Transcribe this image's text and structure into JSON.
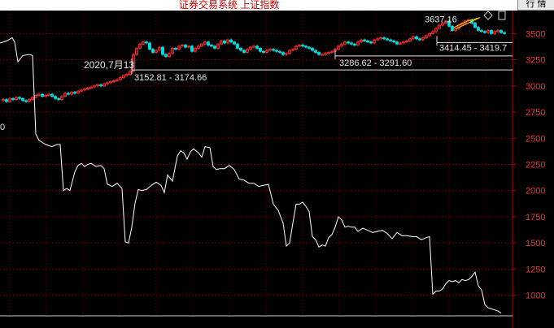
{
  "window": {
    "title": "证券交易系统 上证指数",
    "corner_button": "行 情"
  },
  "colors": {
    "background": "#000000",
    "grid": "#7a0000",
    "axis": "#c00000",
    "tick_text": "#ff3030",
    "price_line": "#ffffff",
    "candle_up": "#ff3030",
    "candle_down": "#00e0e0",
    "annotation": "#e6e6e6",
    "highlight": "#ffd700"
  },
  "chart_data": {
    "type": "line",
    "title": "",
    "xlabel": "",
    "ylabel": "",
    "ylim": [
      780,
      3720
    ],
    "yticks": [
      1000,
      1250,
      1500,
      1750,
      2000,
      2250,
      2500,
      2750,
      3000,
      3250,
      3500
    ],
    "grid": true,
    "series": [
      {
        "x": [
          0,
          8,
          15,
          18,
          22,
          28,
          36,
          40,
          44,
          48,
          56,
          64,
          70,
          74,
          78,
          82,
          86,
          92,
          96,
          100,
          104,
          108,
          112,
          118,
          124,
          128,
          132,
          138,
          144,
          150,
          154,
          158,
          162,
          166,
          170,
          174,
          180,
          186,
          192,
          198,
          202,
          206,
          212,
          218,
          222,
          226,
          230,
          234,
          238,
          244,
          248,
          252,
          258,
          262,
          266,
          270,
          276,
          282,
          288,
          294,
          300,
          306,
          312,
          318,
          324,
          330,
          336,
          342,
          348,
          352,
          356,
          360,
          364,
          368,
          372,
          376,
          380,
          384,
          388,
          392,
          396,
          400,
          404,
          408,
          412,
          416,
          420,
          424,
          428,
          432,
          436,
          440,
          446,
          452,
          458,
          464,
          470,
          476,
          482,
          488,
          494,
          500,
          506,
          512,
          518,
          524,
          528,
          532,
          536,
          540,
          544,
          548,
          552,
          556,
          560,
          564,
          568,
          572,
          576,
          580,
          584,
          588,
          592,
          596,
          600,
          604,
          608,
          612,
          616
        ],
        "values": [
          3410,
          3430,
          3460,
          3420,
          3230,
          3290,
          3300,
          3290,
          2540,
          2480,
          2440,
          2420,
          2440,
          2440,
          2000,
          2020,
          2000,
          2180,
          2240,
          2260,
          2230,
          2250,
          2260,
          2230,
          2240,
          2210,
          2060,
          2040,
          2070,
          2020,
          1510,
          1500,
          1650,
          1880,
          2010,
          2000,
          2010,
          2050,
          2080,
          2050,
          1980,
          2150,
          2090,
          2330,
          2380,
          2360,
          2300,
          2370,
          2400,
          2360,
          2320,
          2420,
          2410,
          2230,
          2200,
          2210,
          2210,
          2240,
          2200,
          2110,
          2100,
          2070,
          2070,
          2040,
          2050,
          2060,
          1870,
          1810,
          1690,
          1470,
          1500,
          1690,
          1870,
          1870,
          1890,
          1850,
          1800,
          1560,
          1530,
          1460,
          1480,
          1470,
          1550,
          1580,
          1650,
          1750,
          1720,
          1650,
          1660,
          1650,
          1650,
          1610,
          1640,
          1620,
          1600,
          1610,
          1620,
          1590,
          1540,
          1600,
          1570,
          1570,
          1560,
          1560,
          1530,
          1550,
          1560,
          1010,
          1040,
          1040,
          1060,
          1110,
          1140,
          1130,
          1140,
          1120,
          1150,
          1140,
          1150,
          1180,
          1220,
          1090,
          1050,
          910,
          880,
          870,
          860,
          850,
          830
        ]
      },
      {
        "x": [
          0,
          4,
          8,
          12,
          16,
          20,
          24,
          28,
          32,
          36,
          40,
          44,
          48,
          52,
          56,
          60,
          64,
          68,
          72,
          76,
          80,
          84,
          88,
          92,
          96,
          100,
          104,
          108,
          112,
          116,
          120,
          124,
          128,
          132,
          136,
          140,
          144,
          148,
          152,
          156,
          160,
          164,
          168,
          172,
          176,
          180,
          184,
          188,
          192,
          196,
          200,
          204,
          208,
          212,
          216,
          220,
          224,
          228,
          232,
          236,
          240,
          244,
          248,
          252,
          256,
          260,
          264,
          268,
          272,
          276,
          280,
          284,
          288,
          292,
          296,
          300,
          304,
          308,
          312,
          316,
          320,
          324,
          328,
          332,
          336,
          340,
          344,
          348,
          352,
          356,
          360,
          364,
          368,
          372,
          376,
          380,
          384,
          388,
          392,
          396,
          400,
          404,
          408,
          412,
          416,
          420,
          424,
          428,
          432,
          436,
          440,
          444,
          448,
          452,
          456,
          460,
          464,
          468,
          472,
          476,
          480,
          484,
          488,
          492,
          496,
          500,
          504,
          508,
          512,
          516,
          520,
          524,
          528,
          532,
          536,
          540,
          544,
          548,
          552,
          556,
          560,
          564,
          568,
          572,
          576,
          580,
          584,
          588,
          592,
          596,
          600,
          604,
          608,
          612,
          616,
          620
        ],
        "values": [
          2860,
          2870,
          2850,
          2880,
          2870,
          2890,
          2880,
          2860,
          2850,
          2870,
          2890,
          2910,
          2920,
          2900,
          2910,
          2920,
          2900,
          2880,
          2870,
          2900,
          2930,
          2920,
          2940,
          2930,
          2950,
          2960,
          2970,
          2980,
          2990,
          3000,
          3010,
          3000,
          3020,
          3030,
          3040,
          3050,
          3060,
          3080,
          3100,
          3110,
          3140,
          3300,
          3360,
          3400,
          3420,
          3410,
          3350,
          3320,
          3340,
          3370,
          3300,
          3280,
          3310,
          3360,
          3350,
          3380,
          3390,
          3370,
          3380,
          3330,
          3360,
          3380,
          3400,
          3420,
          3390,
          3380,
          3360,
          3400,
          3430,
          3410,
          3440,
          3420,
          3400,
          3360,
          3340,
          3320,
          3350,
          3370,
          3380,
          3360,
          3330,
          3320,
          3340,
          3350,
          3340,
          3330,
          3320,
          3300,
          3310,
          3340,
          3350,
          3380,
          3390,
          3380,
          3370,
          3360,
          3340,
          3320,
          3300,
          3300,
          3310,
          3320,
          3330,
          3350,
          3380,
          3400,
          3420,
          3410,
          3400,
          3390,
          3420,
          3440,
          3430,
          3420,
          3410,
          3440,
          3450,
          3460,
          3450,
          3440,
          3430,
          3420,
          3400,
          3410,
          3420,
          3430,
          3450,
          3470,
          3450,
          3440,
          3460,
          3480,
          3500,
          3520,
          3550,
          3580,
          3600,
          3620,
          3570,
          3530,
          3550,
          3580,
          3600,
          3620,
          3630,
          3600,
          3560,
          3530,
          3520,
          3510,
          3530,
          3500,
          3520,
          3530,
          3510,
          3500
        ]
      }
    ],
    "annotations": [
      {
        "text": "2020,7月13",
        "value": 3400
      },
      {
        "text": "3152.81 - 3174.66",
        "value": 3152.81
      },
      {
        "text": "3286.62 - 3291.60",
        "value": 3286.62
      },
      {
        "text": "3414.45 - 3419.7",
        "value": 3414.45
      },
      {
        "text": "3637.16",
        "value": 3637.16
      }
    ],
    "left_clipped_label": "0"
  }
}
